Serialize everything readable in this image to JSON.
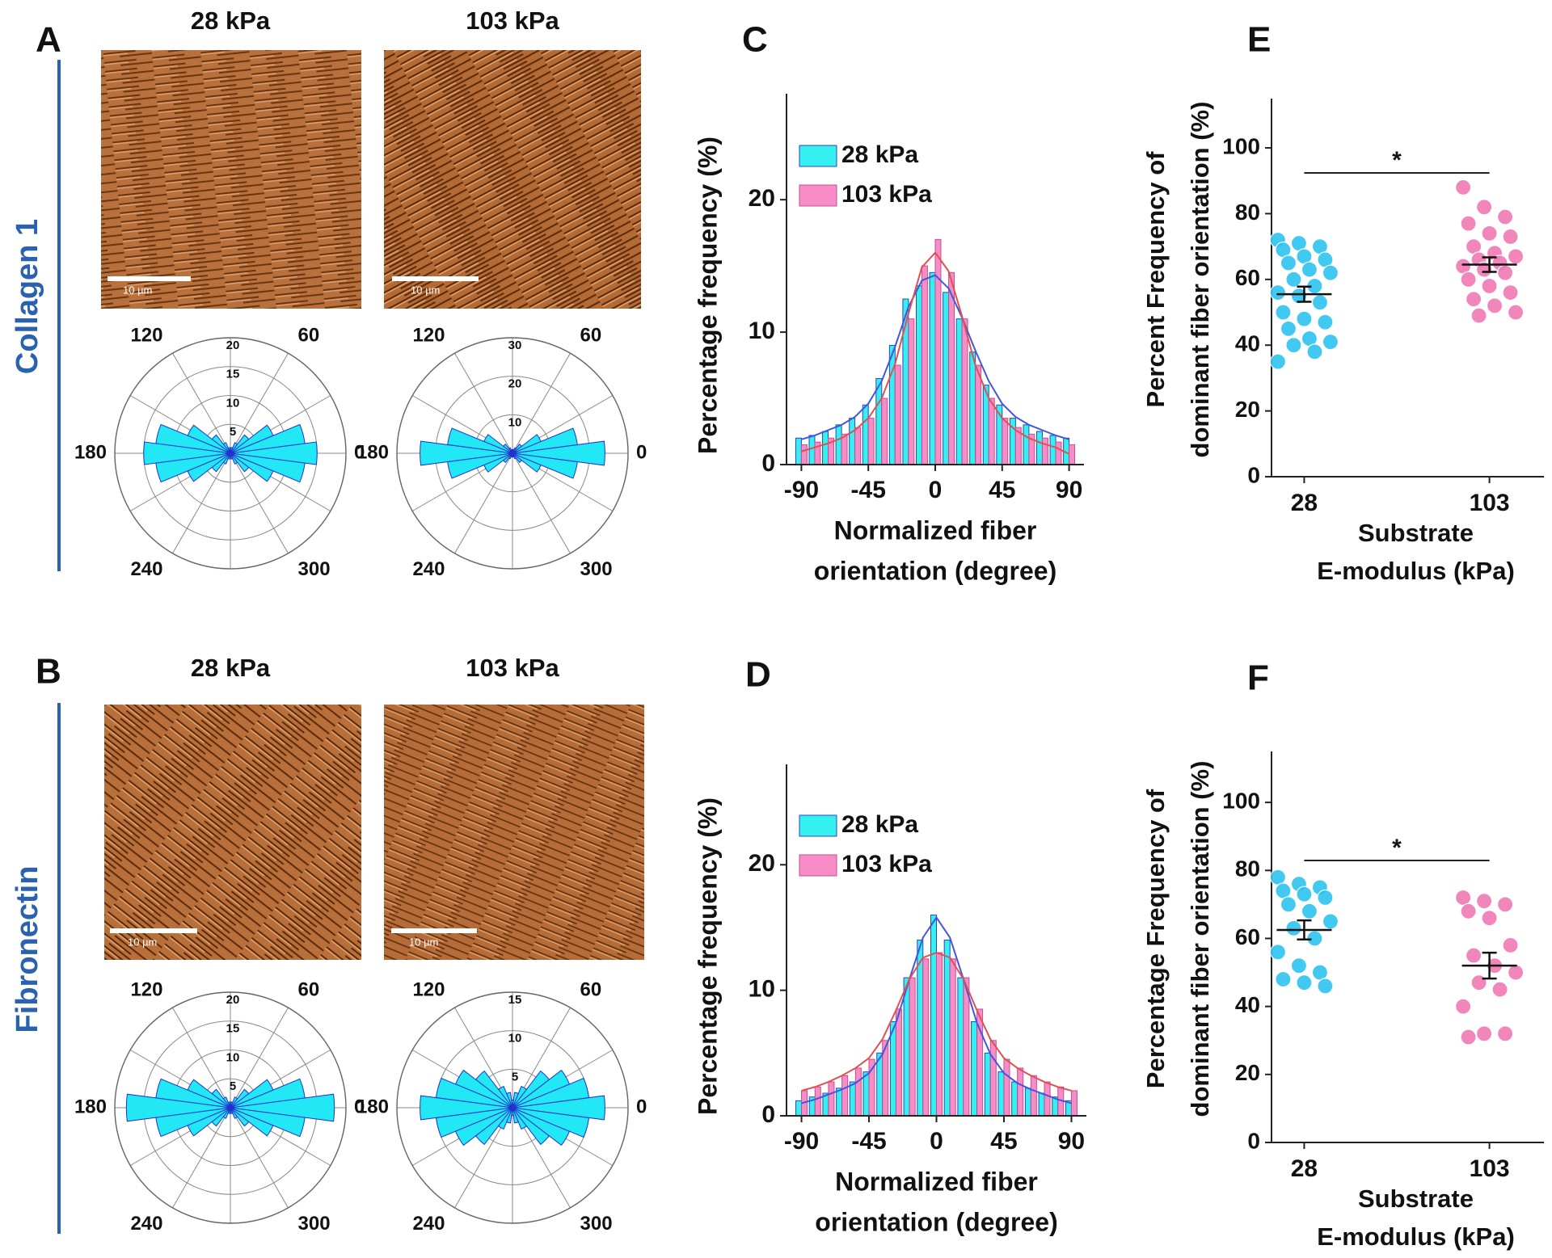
{
  "panel_labels": [
    "A",
    "B",
    "C",
    "D",
    "E",
    "F"
  ],
  "row_labels": [
    "Collagen 1",
    "Fibronectin"
  ],
  "micrographs": [
    {
      "scale_bar": "10 µm"
    },
    {
      "scale_bar": "10 µm"
    },
    {
      "scale_bar": "10 µm"
    },
    {
      "scale_bar": "10 µm"
    }
  ],
  "chart_data": [
    {
      "type": "polar-bar",
      "title": "28 kPa",
      "color": "#22e8f5",
      "edge": "#2233cc",
      "theta": [
        0,
        15,
        30,
        45,
        60,
        75,
        90,
        105,
        120,
        135,
        150,
        165,
        180,
        195,
        210,
        225,
        240,
        255,
        270,
        285,
        300,
        315,
        330,
        345
      ],
      "values": [
        15,
        13,
        8,
        4,
        2,
        1,
        0.5,
        1,
        2,
        4,
        8,
        13,
        15,
        13,
        8,
        4,
        2,
        1,
        0.5,
        1,
        2,
        4,
        8,
        13
      ],
      "rlim": [
        0,
        20
      ],
      "rticks": [
        5,
        10,
        15,
        20
      ],
      "thetaticks": [
        0,
        60,
        120,
        180,
        240,
        300
      ]
    },
    {
      "type": "polar-bar",
      "title": "103 kPa",
      "color": "#22e8f5",
      "edge": "#2233cc",
      "theta": [
        0,
        15,
        30,
        45,
        60,
        75,
        90,
        105,
        120,
        135,
        150,
        165,
        180,
        195,
        210,
        225,
        240,
        255,
        270,
        285,
        300,
        315,
        330,
        345
      ],
      "values": [
        24,
        17,
        8,
        3,
        1.5,
        1,
        0.5,
        1,
        1.5,
        3,
        8,
        17,
        24,
        17,
        8,
        3,
        1.5,
        1,
        0.5,
        1,
        1.5,
        3,
        8,
        17
      ],
      "rlim": [
        0,
        30
      ],
      "rticks": [
        10,
        20,
        30
      ],
      "thetaticks": [
        0,
        60,
        120,
        180,
        240,
        300
      ]
    },
    {
      "type": "polar-bar",
      "title": "28 kPa",
      "color": "#22e8f5",
      "edge": "#2233cc",
      "theta": [
        0,
        15,
        30,
        45,
        60,
        75,
        90,
        105,
        120,
        135,
        150,
        165,
        180,
        195,
        210,
        225,
        240,
        255,
        270,
        285,
        300,
        315,
        330,
        345
      ],
      "values": [
        18,
        13,
        8,
        4,
        2,
        1,
        1,
        1,
        2,
        4,
        8,
        13,
        18,
        13,
        8,
        4,
        2,
        1,
        1,
        1,
        2,
        4,
        8,
        13
      ],
      "rlim": [
        0,
        20
      ],
      "rticks": [
        5,
        10,
        15,
        20
      ],
      "thetaticks": [
        0,
        60,
        120,
        180,
        240,
        300
      ]
    },
    {
      "type": "polar-bar",
      "title": "103 kPa",
      "color": "#22e8f5",
      "edge": "#2233cc",
      "theta": [
        0,
        15,
        30,
        45,
        60,
        75,
        90,
        105,
        120,
        135,
        150,
        165,
        180,
        195,
        210,
        225,
        240,
        255,
        270,
        285,
        300,
        315,
        330,
        345
      ],
      "values": [
        12,
        10,
        8,
        6,
        3,
        2,
        1,
        2,
        3,
        6,
        8,
        10,
        12,
        10,
        8,
        6,
        3,
        2,
        1,
        2,
        3,
        6,
        8,
        10
      ],
      "rlim": [
        0,
        15
      ],
      "rticks": [
        5,
        10,
        15
      ],
      "thetaticks": [
        0,
        60,
        120,
        180,
        240,
        300
      ]
    },
    {
      "type": "bar",
      "ylabel": "Percentage frequency (%)",
      "xlabel": [
        "Normalized fiber",
        "orientation (degree)"
      ],
      "x": [
        -90,
        -81,
        -72,
        -63,
        -54,
        -45,
        -36,
        -27,
        -18,
        -9,
        0,
        9,
        18,
        27,
        36,
        45,
        54,
        63,
        72,
        81,
        90
      ],
      "series": [
        {
          "name": "28 kPa",
          "color": "#35f0f0",
          "edge": "#3344bb",
          "fit_color": "#4455dd",
          "values": [
            2,
            2.2,
            2.5,
            3,
            3.5,
            4.5,
            6.5,
            9,
            12.5,
            13.5,
            14.5,
            13,
            11,
            8.5,
            6,
            4.5,
            3.5,
            3,
            2.5,
            2.2,
            2
          ],
          "fit": [
            1.9,
            2.2,
            2.6,
            3,
            3.6,
            4.6,
            6.3,
            8.9,
            11.9,
            13.9,
            14.3,
            13.3,
            11.1,
            8.6,
            6.3,
            4.6,
            3.6,
            3,
            2.6,
            2.2,
            1.9
          ]
        },
        {
          "name": "103 kPa",
          "color": "#f78cc8",
          "edge": "#c05090",
          "fit_color": "#e05050",
          "values": [
            1.5,
            1.7,
            2,
            2.3,
            2.8,
            3.5,
            5,
            7.5,
            11,
            15,
            17,
            14.5,
            11,
            7.5,
            5,
            3.5,
            2.8,
            2.3,
            2,
            1.7,
            1.5
          ],
          "fit": [
            1,
            1.3,
            1.6,
            2,
            2.6,
            3.5,
            5,
            7.6,
            11.4,
            14.9,
            16,
            14.6,
            11.2,
            7.5,
            5,
            3.5,
            2.6,
            2,
            1.6,
            1.3,
            0.8
          ]
        }
      ],
      "xlim": [
        -100,
        100
      ],
      "xticks": [
        -90,
        -45,
        0,
        45,
        90
      ],
      "ylim": [
        0,
        28
      ],
      "yticks": [
        0,
        10,
        20
      ],
      "legend": "upper left"
    },
    {
      "type": "bar",
      "ylabel": "Percentage frequency (%)",
      "xlabel": [
        "Normalized fiber",
        "orientation (degree)"
      ],
      "x": [
        -90,
        -81,
        -72,
        -63,
        -54,
        -45,
        -36,
        -27,
        -18,
        -9,
        0,
        9,
        18,
        27,
        36,
        45,
        54,
        63,
        72,
        81,
        90
      ],
      "series": [
        {
          "name": "28 kPa",
          "color": "#35f0f0",
          "edge": "#3344bb",
          "fit_color": "#4455dd",
          "values": [
            1.2,
            1.5,
            1.8,
            2.2,
            2.7,
            3.5,
            5,
            7.5,
            11,
            14,
            16,
            14,
            11,
            7.5,
            5,
            3.5,
            2.7,
            2.2,
            1.8,
            1.5,
            1.2
          ],
          "fit": [
            1,
            1.3,
            1.7,
            2.1,
            2.6,
            3.4,
            4.9,
            7.4,
            10.9,
            14.2,
            15.8,
            14.2,
            10.9,
            7.4,
            4.9,
            3.4,
            2.6,
            2.1,
            1.7,
            1.3,
            1
          ]
        },
        {
          "name": "103 kPa",
          "color": "#f78cc8",
          "edge": "#c05090",
          "fit_color": "#e05050",
          "values": [
            2,
            2.3,
            2.7,
            3.2,
            3.8,
            4.5,
            6,
            8.5,
            11,
            12.5,
            13,
            12.5,
            11,
            8.5,
            6,
            4.5,
            3.8,
            3.2,
            2.7,
            2.3,
            2
          ],
          "fit": [
            2,
            2.3,
            2.7,
            3.2,
            3.8,
            4.6,
            6.1,
            8.4,
            10.9,
            12.6,
            13,
            12.6,
            10.9,
            8.4,
            6.1,
            4.6,
            3.8,
            3.2,
            2.7,
            2.3,
            2
          ]
        }
      ],
      "xlim": [
        -100,
        100
      ],
      "xticks": [
        -90,
        -45,
        0,
        45,
        90
      ],
      "ylim": [
        0,
        28
      ],
      "yticks": [
        0,
        10,
        20
      ],
      "legend": "upper left"
    },
    {
      "type": "strip",
      "ylabel": [
        "Percent Frequency of",
        "dominant fiber orientation (%)"
      ],
      "xlabel": [
        "Substrate",
        "E-modulus (kPa)"
      ],
      "categories": [
        "28",
        "103"
      ],
      "annotation": "*",
      "series": [
        {
          "color": "#2ec4f0",
          "values": [
            72,
            71,
            70,
            69,
            67,
            66,
            65,
            63,
            62,
            60,
            58,
            56,
            55,
            53,
            50,
            48,
            47,
            45,
            42,
            41,
            40,
            38,
            35
          ],
          "mean": 55.5,
          "sem": 2.3
        },
        {
          "color": "#f07ab4",
          "values": [
            88,
            82,
            79,
            77,
            74,
            73,
            70,
            68,
            67,
            66,
            65,
            64,
            63,
            62,
            60,
            58,
            56,
            54,
            52,
            50,
            49
          ],
          "mean": 64.5,
          "sem": 2.2
        }
      ],
      "ylim": [
        0,
        115
      ],
      "yticks": [
        0,
        20,
        40,
        60,
        80,
        100
      ]
    },
    {
      "type": "strip",
      "ylabel": [
        "Percentage Frequency of",
        "dominant fiber orientation (%)"
      ],
      "xlabel": [
        "Substrate",
        "E-modulus (kPa)"
      ],
      "categories": [
        "28",
        "103"
      ],
      "annotation": "*",
      "series": [
        {
          "color": "#2ec4f0",
          "values": [
            78,
            76,
            75,
            74,
            73,
            72,
            70,
            68,
            65,
            63,
            60,
            56,
            52,
            50,
            48,
            47,
            46
          ],
          "mean": 62.5,
          "sem": 2.8
        },
        {
          "color": "#f07ab4",
          "values": [
            72,
            71,
            70,
            68,
            66,
            58,
            55,
            52,
            50,
            47,
            45,
            40,
            32,
            32,
            31
          ],
          "mean": 52,
          "sem": 3.8
        }
      ],
      "ylim": [
        0,
        115
      ],
      "yticks": [
        0,
        20,
        40,
        60,
        80,
        100
      ]
    }
  ]
}
